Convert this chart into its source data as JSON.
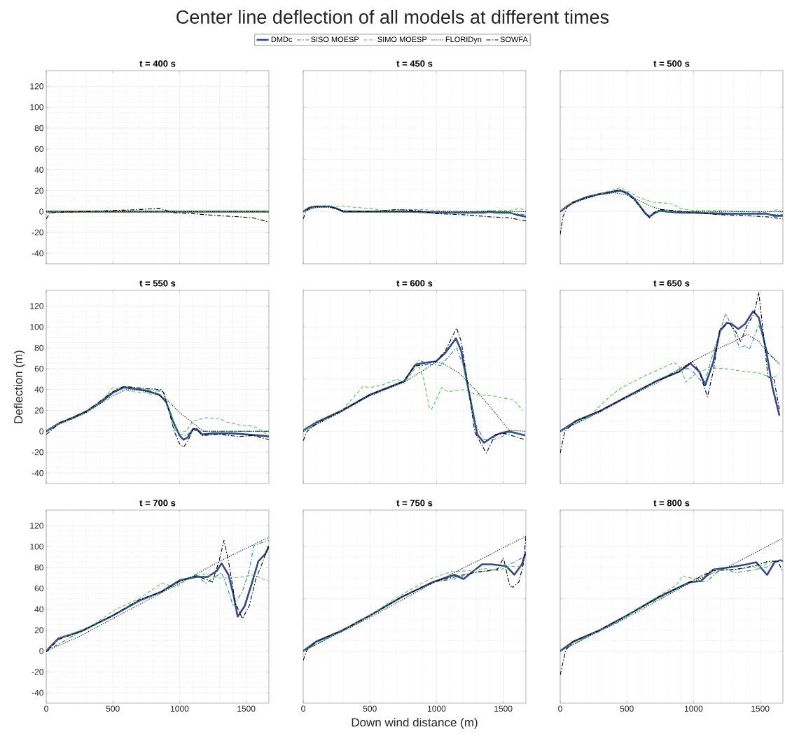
{
  "chart_data": [
    {
      "type": "other",
      "title": "Center line deflection of all models at different times"
    },
    {
      "type": "line",
      "title": "t = 400 s",
      "xlim": [
        0,
        1670
      ],
      "ylim": [
        -50,
        135
      ],
      "xticks": [
        0,
        500,
        1000,
        1500
      ],
      "yticks": [
        -40,
        -20,
        0,
        20,
        40,
        60,
        80,
        100,
        120
      ],
      "grid": true,
      "tick_labels": "y",
      "legend": "top",
      "series": [
        {
          "name": "DMDc",
          "color": "#34488c",
          "line_style": "solid",
          "x": [
            0,
            500,
            1000,
            1670
          ],
          "values": [
            0,
            0,
            0,
            0
          ]
        },
        {
          "name": "SISO MOESP",
          "color": "#1f8f8c",
          "line_style": "dashdot",
          "x": [
            0,
            500,
            1000,
            1670
          ],
          "values": [
            0,
            0,
            0,
            0
          ]
        },
        {
          "name": "SIMO MOESP",
          "color": "#5ac85a",
          "line_style": "dashed",
          "x": [
            0,
            500,
            1000,
            1670
          ],
          "values": [
            0,
            0,
            0,
            0
          ]
        },
        {
          "name": "FLORIDyn",
          "color": "#000000",
          "line_style": "dotted",
          "x": [
            0,
            500,
            1000,
            1670
          ],
          "values": [
            0,
            0,
            0,
            0
          ]
        },
        {
          "name": "SOWFA",
          "color": "#000000",
          "line_style": "dashdot",
          "x": [
            0,
            30,
            300,
            500,
            700,
            850,
            880,
            950,
            1100,
            1300,
            1450,
            1550,
            1670
          ],
          "values": [
            -7,
            -1,
            0,
            1,
            2,
            3,
            2,
            -1,
            -2,
            -4,
            -5,
            -6,
            -10
          ]
        }
      ]
    },
    {
      "type": "line",
      "title": "t = 450 s",
      "xlim": [
        0,
        1670
      ],
      "ylim": [
        -50,
        135
      ],
      "xticks": [
        0,
        500,
        1000,
        1500
      ],
      "yticks": [
        0,
        50,
        100
      ],
      "grid": true,
      "tick_labels": false,
      "series": [
        {
          "color": "#34488c",
          "line_style": "solid",
          "x": [
            0,
            50,
            100,
            200,
            250,
            300,
            400,
            600,
            800,
            1000,
            1200,
            1350,
            1400,
            1450,
            1550,
            1600,
            1670
          ],
          "values": [
            0,
            4,
            5,
            5,
            3,
            0,
            0,
            0,
            0,
            -1,
            -1,
            -1,
            0,
            -1,
            -1,
            -3,
            -5
          ]
        },
        {
          "color": "#1f8f8c",
          "line_style": "dashdot",
          "x": [
            0,
            100,
            200,
            300,
            600,
            1000,
            1400,
            1600,
            1670
          ],
          "values": [
            0,
            5,
            5,
            0,
            0,
            -1,
            -1,
            -2,
            -3
          ]
        },
        {
          "color": "#5ac85a",
          "line_style": "dashed",
          "x": [
            0,
            100,
            300,
            400,
            500,
            600,
            800,
            900,
            1000,
            1200,
            1400,
            1550,
            1620,
            1670
          ],
          "values": [
            0,
            5,
            5,
            4,
            3,
            1,
            2,
            2,
            1,
            0,
            1,
            1,
            3,
            1
          ]
        },
        {
          "color": "#000000",
          "line_style": "dotted",
          "x": [
            0,
            100,
            200,
            300,
            500,
            1670
          ],
          "values": [
            0,
            4,
            4,
            1,
            0,
            0
          ]
        },
        {
          "color": "#000000",
          "line_style": "dashdot",
          "x": [
            0,
            20,
            50,
            100,
            200,
            300,
            500,
            700,
            850,
            1000,
            1200,
            1400,
            1550,
            1670
          ],
          "values": [
            -7,
            0,
            4,
            5,
            5,
            0,
            0,
            2,
            1,
            -2,
            -3,
            -5,
            -6,
            -9
          ]
        }
      ]
    },
    {
      "type": "line",
      "title": "t = 500 s",
      "xlim": [
        0,
        1670
      ],
      "ylim": [
        -50,
        135
      ],
      "xticks": [
        0,
        500,
        1000,
        1500
      ],
      "yticks": [
        0,
        50,
        100
      ],
      "grid": true,
      "tick_labels": false,
      "series": [
        {
          "color": "#34488c",
          "line_style": "solid",
          "x": [
            0,
            50,
            100,
            200,
            300,
            400,
            450,
            500,
            550,
            600,
            640,
            670,
            700,
            750,
            800,
            900,
            1000,
            1200,
            1400,
            1550,
            1600,
            1670
          ],
          "values": [
            0,
            5,
            9,
            14,
            17,
            19,
            20,
            18,
            13,
            5,
            -2,
            -5,
            -2,
            1,
            0,
            -1,
            -1,
            -2,
            -2,
            -2,
            -4,
            -4
          ]
        },
        {
          "color": "#1f8f8c",
          "line_style": "dashdot",
          "x": [
            0,
            100,
            300,
            450,
            550,
            640,
            670,
            720,
            800,
            1200,
            1670
          ],
          "values": [
            0,
            9,
            17,
            21,
            13,
            -1,
            -4,
            0,
            0,
            -1,
            -3
          ]
        },
        {
          "color": "#5ac85a",
          "line_style": "dashed",
          "x": [
            0,
            100,
            300,
            450,
            500,
            600,
            700,
            800,
            850,
            900,
            1000,
            1200,
            1400,
            1550,
            1630,
            1670
          ],
          "values": [
            0,
            9,
            17,
            23,
            20,
            13,
            9,
            8,
            7,
            3,
            1,
            1,
            0,
            -1,
            2,
            -2
          ]
        },
        {
          "color": "#000000",
          "line_style": "dotted",
          "x": [
            0,
            100,
            200,
            300,
            400,
            500,
            600,
            700,
            800,
            900,
            1670
          ],
          "values": [
            0,
            8,
            13,
            16,
            18,
            16,
            10,
            4,
            1,
            0,
            0
          ]
        },
        {
          "color": "#000000",
          "line_style": "dashdot",
          "x": [
            0,
            20,
            50,
            100,
            300,
            450,
            550,
            640,
            670,
            700,
            750,
            850,
            1000,
            1200,
            1400,
            1550,
            1670
          ],
          "values": [
            -22,
            -5,
            4,
            9,
            17,
            21,
            12,
            -2,
            -6,
            -1,
            2,
            1,
            -1,
            -3,
            -4,
            -5,
            -7
          ]
        }
      ]
    },
    {
      "type": "line",
      "title": "t = 550 s",
      "ylabel": "Deflection (m)",
      "xlim": [
        0,
        1670
      ],
      "ylim": [
        -50,
        135
      ],
      "xticks": [
        0,
        500,
        1000,
        1500
      ],
      "yticks": [
        -40,
        -20,
        0,
        20,
        40,
        60,
        80,
        100,
        120
      ],
      "grid": true,
      "tick_labels": "y",
      "series": [
        {
          "color": "#34488c",
          "line_style": "solid",
          "x": [
            0,
            100,
            200,
            300,
            400,
            500,
            580,
            650,
            750,
            850,
            900,
            950,
            1000,
            1030,
            1060,
            1100,
            1130,
            1170,
            1250,
            1400,
            1500,
            1600,
            1670
          ],
          "values": [
            0,
            8,
            13,
            19,
            27,
            37,
            42,
            41,
            39,
            35,
            28,
            10,
            -4,
            -8,
            -6,
            2,
            2,
            -3,
            -2,
            -2,
            -3,
            -4,
            -5
          ]
        },
        {
          "color": "#1f8f8c",
          "line_style": "dashdot",
          "x": [
            0,
            100,
            300,
            500,
            580,
            750,
            880,
            950,
            1000,
            1050,
            1100,
            1170,
            1670
          ],
          "values": [
            0,
            8,
            19,
            38,
            43,
            40,
            38,
            10,
            -3,
            -4,
            1,
            0,
            0
          ]
        },
        {
          "color": "#5ac85a",
          "line_style": "dashed",
          "x": [
            0,
            100,
            200,
            300,
            400,
            450,
            500,
            550,
            650,
            750,
            800,
            830,
            870,
            900,
            950,
            980,
            1050,
            1100,
            1200,
            1300,
            1350,
            1450,
            1550,
            1600,
            1640,
            1670
          ],
          "values": [
            0,
            8,
            12,
            18,
            27,
            34,
            42,
            40,
            38,
            37,
            35,
            39,
            40,
            30,
            5,
            -1,
            0,
            10,
            13,
            12,
            9,
            6,
            5,
            2,
            -2,
            -3
          ]
        },
        {
          "color": "#000000",
          "line_style": "dotted",
          "x": [
            0,
            100,
            200,
            300,
            400,
            500,
            600,
            700,
            800,
            900,
            1000,
            1100,
            1180,
            1670
          ],
          "values": [
            0,
            7,
            12,
            18,
            26,
            34,
            40,
            39,
            37,
            31,
            18,
            8,
            0,
            0
          ]
        },
        {
          "color": "#000000",
          "line_style": "dashdot",
          "x": [
            0,
            30,
            100,
            300,
            500,
            580,
            750,
            860,
            880,
            920,
            960,
            1000,
            1030,
            1060,
            1100,
            1120,
            1170,
            1300,
            1450,
            1550,
            1670
          ],
          "values": [
            -3,
            0,
            8,
            19,
            38,
            43,
            41,
            40,
            37,
            20,
            0,
            -12,
            -15,
            -10,
            2,
            3,
            -4,
            -3,
            -5,
            -4,
            -8
          ]
        }
      ]
    },
    {
      "type": "line",
      "title": "t = 600 s",
      "xlim": [
        0,
        1670
      ],
      "ylim": [
        -50,
        135
      ],
      "xticks": [
        0,
        500,
        1000,
        1500
      ],
      "yticks": [
        0,
        50,
        100
      ],
      "grid": true,
      "tick_labels": false,
      "series": [
        {
          "color": "#34488c",
          "line_style": "solid",
          "x": [
            0,
            106,
            277,
            500,
            757,
            842,
            928,
            996,
            1065,
            1145,
            1185,
            1236,
            1305,
            1356,
            1424,
            1476,
            1544,
            1664
          ],
          "values": [
            1,
            9,
            19,
            35,
            48,
            64,
            66,
            67,
            75,
            89,
            77,
            42,
            -3,
            -11,
            -5,
            -2,
            0,
            -4
          ]
        },
        {
          "color": "#1f8f8c",
          "line_style": "dashdot",
          "x": [
            0,
            277,
            500,
            757,
            868,
            962,
            1031,
            1150,
            1202,
            1287,
            1356,
            1424,
            1493,
            1544,
            1664
          ],
          "values": [
            1,
            19,
            35,
            48,
            68,
            64,
            63,
            80,
            62,
            8,
            -8,
            -8,
            -5,
            -1,
            -3
          ]
        },
        {
          "color": "#5ac85a",
          "line_style": "dashed",
          "x": [
            0,
            106,
            277,
            449,
            500,
            585,
            705,
            757,
            859,
            902,
            945,
            962,
            1039,
            1082,
            1202,
            1305,
            1424,
            1578,
            1647
          ],
          "values": [
            0,
            8,
            18,
            43,
            42,
            44,
            50,
            46,
            64,
            51,
            23,
            21,
            42,
            38,
            40,
            35,
            34,
            30,
            20
          ]
        },
        {
          "color": "#000000",
          "line_style": "dotted",
          "x": [
            0,
            277,
            500,
            757,
            996,
            1048,
            1168,
            1305,
            1424,
            1544,
            1670
          ],
          "values": [
            0,
            18,
            34,
            47,
            66,
            65,
            56,
            38,
            20,
            1,
            0
          ]
        },
        {
          "color": "#000000",
          "line_style": "dashdot",
          "x": [
            0,
            29,
            106,
            277,
            500,
            757,
            834,
            894,
            996,
            1065,
            1150,
            1185,
            1236,
            1287,
            1373,
            1441,
            1510,
            1664
          ],
          "values": [
            -9,
            0,
            8,
            19,
            35,
            48,
            63,
            63,
            67,
            77,
            99,
            86,
            44,
            -1,
            -21,
            -3,
            -2,
            -8
          ]
        }
      ]
    },
    {
      "type": "line",
      "title": "t = 650 s",
      "xlim": [
        0,
        1670
      ],
      "ylim": [
        -50,
        135
      ],
      "xticks": [
        0,
        500,
        1000,
        1500
      ],
      "yticks": [
        0,
        50,
        100
      ],
      "grid": true,
      "tick_labels": false,
      "series": [
        {
          "color": "#34488c",
          "line_style": "solid",
          "x": [
            0,
            120,
            291,
            497,
            719,
            890,
            976,
            1044,
            1087,
            1147,
            1198,
            1250,
            1284,
            1335,
            1387,
            1447,
            1489,
            1541,
            1592,
            1644
          ],
          "values": [
            0,
            10,
            19,
            33,
            48,
            57,
            65,
            57,
            44,
            66,
            96,
            104,
            103,
            98,
            103,
            115,
            109,
            80,
            42,
            15
          ]
        },
        {
          "color": "#1f8f8c",
          "line_style": "dashdot",
          "x": [
            0,
            291,
            497,
            719,
            899,
            976,
            1079,
            1147,
            1241,
            1301,
            1344,
            1387,
            1421,
            1489,
            1558,
            1644
          ],
          "values": [
            0,
            19,
            33,
            48,
            60,
            60,
            45,
            75,
            113,
            96,
            80,
            82,
            79,
            102,
            75,
            65
          ]
        },
        {
          "color": "#5ac85a",
          "line_style": "dashed",
          "x": [
            0,
            205,
            377,
            462,
            633,
            770,
            856,
            907,
            942,
            993,
            1113,
            1233,
            1404,
            1489,
            1592,
            1644
          ],
          "values": [
            0,
            13,
            34,
            42,
            53,
            61,
            66,
            60,
            47,
            53,
            61,
            60,
            57,
            56,
            51,
            55
          ]
        },
        {
          "color": "#000000",
          "line_style": "dotted",
          "x": [
            0,
            291,
            497,
            719,
            976,
            1147,
            1318,
            1404,
            1489,
            1558,
            1644
          ],
          "values": [
            0,
            18,
            32,
            46,
            66,
            77,
            87,
            93,
            86,
            75,
            64
          ]
        },
        {
          "color": "#000000",
          "line_style": "dashdot",
          "x": [
            0,
            34,
            120,
            291,
            497,
            719,
            890,
            993,
            1044,
            1104,
            1147,
            1198,
            1267,
            1318,
            1353,
            1404,
            1455,
            1489,
            1524,
            1558,
            1601,
            1644
          ],
          "values": [
            -21,
            0,
            10,
            19,
            33,
            48,
            57,
            67,
            57,
            33,
            57,
            98,
            104,
            95,
            86,
            102,
            113,
            133,
            93,
            52,
            51,
            21
          ]
        }
      ]
    },
    {
      "type": "line",
      "title": "t = 700 s",
      "xlim": [
        0,
        1670
      ],
      "ylim": [
        -50,
        135
      ],
      "xticks": [
        0,
        500,
        1000,
        1500
      ],
      "yticks": [
        -40,
        -20,
        0,
        20,
        40,
        60,
        80,
        100,
        120
      ],
      "grid": true,
      "series": [
        {
          "color": "#34488c",
          "line_style": "solid",
          "x": [
            0,
            91,
            264,
            500,
            695,
            867,
            1005,
            1126,
            1212,
            1281,
            1315,
            1367,
            1402,
            1436,
            1488,
            1540,
            1591,
            1643,
            1670
          ],
          "values": [
            0,
            12,
            19,
            34,
            48,
            57,
            68,
            71,
            71,
            77,
            84,
            73,
            55,
            33,
            43,
            64,
            86,
            93,
            100
          ]
        },
        {
          "color": "#1f8f8c",
          "line_style": "dashdot",
          "x": [
            0,
            264,
            500,
            695,
            867,
            1005,
            1126,
            1195,
            1315,
            1358,
            1402,
            1471,
            1522,
            1557,
            1643,
            1670
          ],
          "values": [
            0,
            19,
            34,
            48,
            57,
            67,
            73,
            65,
            75,
            61,
            43,
            57,
            77,
            101,
            105,
            106
          ]
        },
        {
          "color": "#5ac85a",
          "line_style": "dashed",
          "x": [
            0,
            91,
            350,
            522,
            695,
            867,
            971,
            1074,
            1178,
            1281,
            1384,
            1471,
            1557,
            1626,
            1669
          ],
          "values": [
            0,
            11,
            25,
            40,
            50,
            65,
            61,
            70,
            74,
            70,
            70,
            71,
            73,
            69,
            67
          ]
        },
        {
          "color": "#000000",
          "line_style": "dotted",
          "x": [
            0,
            250,
            500,
            750,
            1000,
            1300,
            1670
          ],
          "values": [
            0,
            14,
            31,
            48,
            65,
            86,
            109
          ]
        },
        {
          "color": "#000000",
          "line_style": "dashdot",
          "x": [
            0,
            91,
            264,
            500,
            695,
            867,
            1005,
            1126,
            1212,
            1246,
            1298,
            1333,
            1367,
            1419,
            1471,
            1522,
            1574,
            1608,
            1670
          ],
          "values": [
            -1,
            11,
            19,
            34,
            49,
            57,
            67,
            72,
            68,
            66,
            87,
            106,
            86,
            46,
            31,
            43,
            70,
            80,
            102
          ]
        }
      ]
    },
    {
      "type": "line",
      "title": "t = 750 s",
      "xlabel": "Down wind distance (m)",
      "xlim": [
        0,
        1670
      ],
      "ylim": [
        -50,
        135
      ],
      "xticks": [
        0,
        500,
        1000,
        1500
      ],
      "yticks": [
        0,
        50,
        100
      ],
      "grid": true,
      "tick_labels": "x",
      "series": [
        {
          "color": "#34488c",
          "line_style": "solid",
          "x": [
            0,
            97,
            281,
            500,
            742,
            972,
            1134,
            1203,
            1260,
            1341,
            1410,
            1479,
            1525,
            1583,
            1640,
            1670
          ],
          "values": [
            0,
            9,
            19,
            34,
            52,
            66,
            73,
            69,
            75,
            83,
            83,
            82,
            81,
            73,
            83,
            95
          ]
        },
        {
          "color": "#1f8f8c",
          "line_style": "dashdot",
          "x": [
            0,
            281,
            500,
            742,
            972,
            1134,
            1272,
            1410,
            1548,
            1640,
            1670
          ],
          "values": [
            0,
            19,
            34,
            52,
            66,
            69,
            75,
            77,
            83,
            89,
            90
          ]
        },
        {
          "color": "#5ac85a",
          "line_style": "dashed",
          "x": [
            0,
            281,
            511,
            696,
            949,
            1111,
            1249,
            1364,
            1456,
            1548,
            1640
          ],
          "values": [
            0,
            19,
            35,
            51,
            69,
            76,
            77,
            79,
            77,
            81,
            81
          ]
        },
        {
          "color": "#000000",
          "line_style": "dotted",
          "x": [
            0,
            500,
            972,
            1318,
            1670
          ],
          "values": [
            0,
            32,
            65,
            87,
            110
          ]
        },
        {
          "color": "#000000",
          "line_style": "dashdot",
          "x": [
            0,
            28,
            97,
            281,
            500,
            742,
            972,
            1203,
            1318,
            1456,
            1502,
            1548,
            1571,
            1617,
            1652,
            1670
          ],
          "values": [
            -9,
            1,
            9,
            19,
            34,
            52,
            66,
            73,
            76,
            78,
            89,
            63,
            61,
            66,
            84,
            110
          ]
        }
      ]
    },
    {
      "type": "line",
      "title": "t = 800 s",
      "xlim": [
        0,
        1670
      ],
      "ylim": [
        -50,
        135
      ],
      "xticks": [
        0,
        500,
        1000,
        1500
      ],
      "yticks": [
        0,
        50,
        100
      ],
      "grid": true,
      "tick_labels": "x",
      "series": [
        {
          "color": "#34488c",
          "line_style": "solid",
          "x": [
            0,
            97,
            281,
            500,
            742,
            972,
            1055,
            1147,
            1263,
            1401,
            1470,
            1551,
            1608,
            1650,
            1670
          ],
          "values": [
            0,
            9,
            19,
            34,
            52,
            66,
            67,
            78,
            80,
            83,
            85,
            73,
            85,
            87,
            86
          ]
        },
        {
          "color": "#1f8f8c",
          "line_style": "dashdot",
          "x": [
            0,
            281,
            500,
            972,
            1101,
            1217,
            1309,
            1424,
            1562,
            1631,
            1670
          ],
          "values": [
            0,
            19,
            34,
            66,
            67,
            80,
            75,
            77,
            81,
            87,
            86
          ]
        },
        {
          "color": "#5ac85a",
          "line_style": "dashed",
          "x": [
            0,
            281,
            433,
            571,
            871,
            917,
            1009,
            1147,
            1309,
            1493,
            1631
          ],
          "values": [
            0,
            19,
            27,
            40,
            63,
            72,
            69,
            78,
            78,
            81,
            87
          ]
        },
        {
          "color": "#000000",
          "line_style": "dotted",
          "x": [
            0,
            500,
            972,
            1263,
            1670
          ],
          "values": [
            0,
            32,
            65,
            81,
            108
          ]
        },
        {
          "color": "#000000",
          "line_style": "dashdot",
          "x": [
            0,
            41,
            97,
            281,
            500,
            742,
            972,
            1147,
            1309,
            1470,
            1562,
            1631,
            1670
          ],
          "values": [
            -23,
            1,
            9,
            19,
            34,
            52,
            66,
            77,
            78,
            82,
            86,
            86,
            76
          ]
        }
      ]
    }
  ]
}
